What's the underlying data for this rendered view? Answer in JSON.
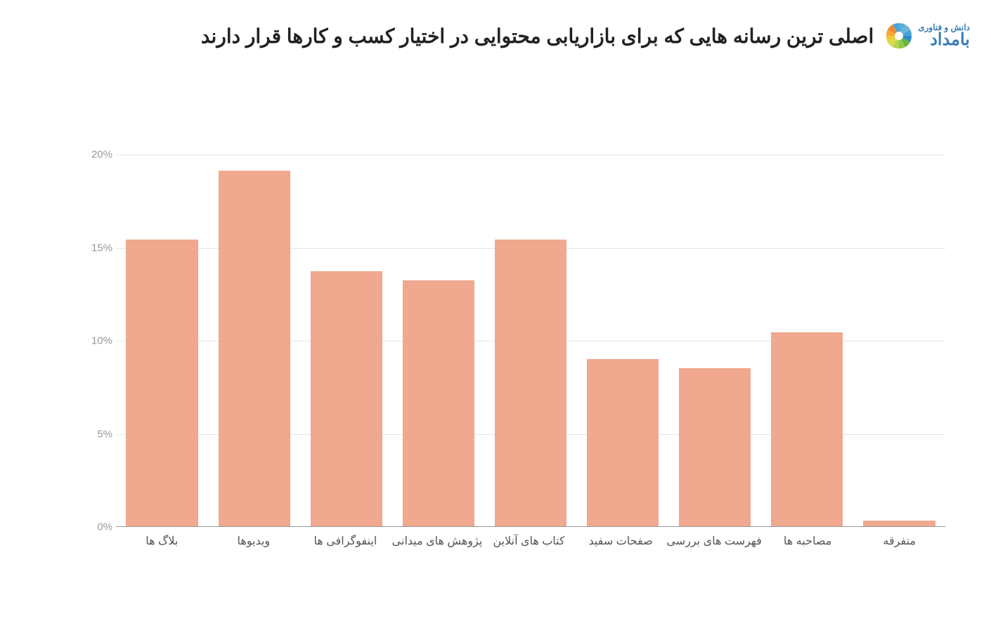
{
  "title": "اصلی ترین رسانه هایی که برای بازاریابی محتوایی در اختیار کسب و کارها قرار دارند",
  "logo": {
    "top_text": "دانش و فناوری",
    "bottom_text": "بامداد"
  },
  "chart": {
    "type": "bar",
    "categories": [
      "بلاگ ها",
      "ویدیوها",
      "اینفوگرافی ها",
      "پژوهش های میدانی",
      "کتاب های آنلاین",
      "صفحات سفید",
      "فهرست های بررسی",
      "مصاحبه ها",
      "متفرقه"
    ],
    "values": [
      15.4,
      19.1,
      13.7,
      13.2,
      15.4,
      9.0,
      8.5,
      10.4,
      0.3
    ],
    "bar_color": "#f0a88f",
    "background_color": "#ffffff",
    "grid_color": "#e5e5e5",
    "axis_label_color": "#999999",
    "x_label_color": "#555555",
    "ylim": [
      0,
      20
    ],
    "y_ticks": [
      0,
      5,
      10,
      15,
      20
    ],
    "y_tick_labels": [
      "0%",
      "5%",
      "10%",
      "15%",
      "20%"
    ],
    "bar_width_ratio": 0.78,
    "title_fontsize": 28,
    "axis_label_fontsize": 15,
    "x_label_fontsize": 16
  }
}
